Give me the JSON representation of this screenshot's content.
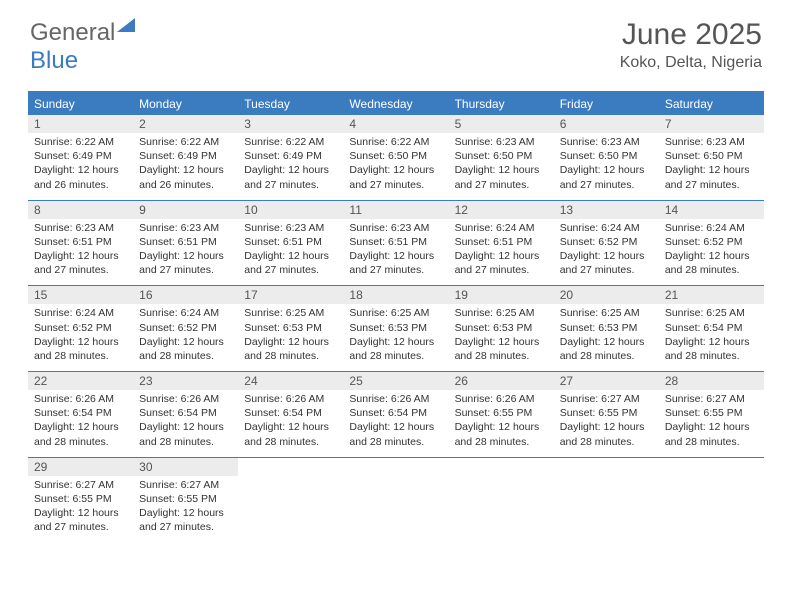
{
  "logo": {
    "word1": "General",
    "word2": "Blue"
  },
  "title": "June 2025",
  "location": "Koko, Delta, Nigeria",
  "colors": {
    "accent": "#3b7bbf",
    "header_text": "#ffffff",
    "daynum_bg": "#ececec",
    "text": "#333333",
    "title_text": "#555555",
    "logo_gray": "#666666"
  },
  "day_names": [
    "Sunday",
    "Monday",
    "Tuesday",
    "Wednesday",
    "Thursday",
    "Friday",
    "Saturday"
  ],
  "labels": {
    "sunrise": "Sunrise:",
    "sunset": "Sunset:",
    "daylight": "Daylight:"
  },
  "days": [
    {
      "n": "1",
      "sunrise": "6:22 AM",
      "sunset": "6:49 PM",
      "daylight": "12 hours and 26 minutes."
    },
    {
      "n": "2",
      "sunrise": "6:22 AM",
      "sunset": "6:49 PM",
      "daylight": "12 hours and 26 minutes."
    },
    {
      "n": "3",
      "sunrise": "6:22 AM",
      "sunset": "6:49 PM",
      "daylight": "12 hours and 27 minutes."
    },
    {
      "n": "4",
      "sunrise": "6:22 AM",
      "sunset": "6:50 PM",
      "daylight": "12 hours and 27 minutes."
    },
    {
      "n": "5",
      "sunrise": "6:23 AM",
      "sunset": "6:50 PM",
      "daylight": "12 hours and 27 minutes."
    },
    {
      "n": "6",
      "sunrise": "6:23 AM",
      "sunset": "6:50 PM",
      "daylight": "12 hours and 27 minutes."
    },
    {
      "n": "7",
      "sunrise": "6:23 AM",
      "sunset": "6:50 PM",
      "daylight": "12 hours and 27 minutes."
    },
    {
      "n": "8",
      "sunrise": "6:23 AM",
      "sunset": "6:51 PM",
      "daylight": "12 hours and 27 minutes."
    },
    {
      "n": "9",
      "sunrise": "6:23 AM",
      "sunset": "6:51 PM",
      "daylight": "12 hours and 27 minutes."
    },
    {
      "n": "10",
      "sunrise": "6:23 AM",
      "sunset": "6:51 PM",
      "daylight": "12 hours and 27 minutes."
    },
    {
      "n": "11",
      "sunrise": "6:23 AM",
      "sunset": "6:51 PM",
      "daylight": "12 hours and 27 minutes."
    },
    {
      "n": "12",
      "sunrise": "6:24 AM",
      "sunset": "6:51 PM",
      "daylight": "12 hours and 27 minutes."
    },
    {
      "n": "13",
      "sunrise": "6:24 AM",
      "sunset": "6:52 PM",
      "daylight": "12 hours and 27 minutes."
    },
    {
      "n": "14",
      "sunrise": "6:24 AM",
      "sunset": "6:52 PM",
      "daylight": "12 hours and 28 minutes."
    },
    {
      "n": "15",
      "sunrise": "6:24 AM",
      "sunset": "6:52 PM",
      "daylight": "12 hours and 28 minutes."
    },
    {
      "n": "16",
      "sunrise": "6:24 AM",
      "sunset": "6:52 PM",
      "daylight": "12 hours and 28 minutes."
    },
    {
      "n": "17",
      "sunrise": "6:25 AM",
      "sunset": "6:53 PM",
      "daylight": "12 hours and 28 minutes."
    },
    {
      "n": "18",
      "sunrise": "6:25 AM",
      "sunset": "6:53 PM",
      "daylight": "12 hours and 28 minutes."
    },
    {
      "n": "19",
      "sunrise": "6:25 AM",
      "sunset": "6:53 PM",
      "daylight": "12 hours and 28 minutes."
    },
    {
      "n": "20",
      "sunrise": "6:25 AM",
      "sunset": "6:53 PM",
      "daylight": "12 hours and 28 minutes."
    },
    {
      "n": "21",
      "sunrise": "6:25 AM",
      "sunset": "6:54 PM",
      "daylight": "12 hours and 28 minutes."
    },
    {
      "n": "22",
      "sunrise": "6:26 AM",
      "sunset": "6:54 PM",
      "daylight": "12 hours and 28 minutes."
    },
    {
      "n": "23",
      "sunrise": "6:26 AM",
      "sunset": "6:54 PM",
      "daylight": "12 hours and 28 minutes."
    },
    {
      "n": "24",
      "sunrise": "6:26 AM",
      "sunset": "6:54 PM",
      "daylight": "12 hours and 28 minutes."
    },
    {
      "n": "25",
      "sunrise": "6:26 AM",
      "sunset": "6:54 PM",
      "daylight": "12 hours and 28 minutes."
    },
    {
      "n": "26",
      "sunrise": "6:26 AM",
      "sunset": "6:55 PM",
      "daylight": "12 hours and 28 minutes."
    },
    {
      "n": "27",
      "sunrise": "6:27 AM",
      "sunset": "6:55 PM",
      "daylight": "12 hours and 28 minutes."
    },
    {
      "n": "28",
      "sunrise": "6:27 AM",
      "sunset": "6:55 PM",
      "daylight": "12 hours and 28 minutes."
    },
    {
      "n": "29",
      "sunrise": "6:27 AM",
      "sunset": "6:55 PM",
      "daylight": "12 hours and 27 minutes."
    },
    {
      "n": "30",
      "sunrise": "6:27 AM",
      "sunset": "6:55 PM",
      "daylight": "12 hours and 27 minutes."
    }
  ]
}
